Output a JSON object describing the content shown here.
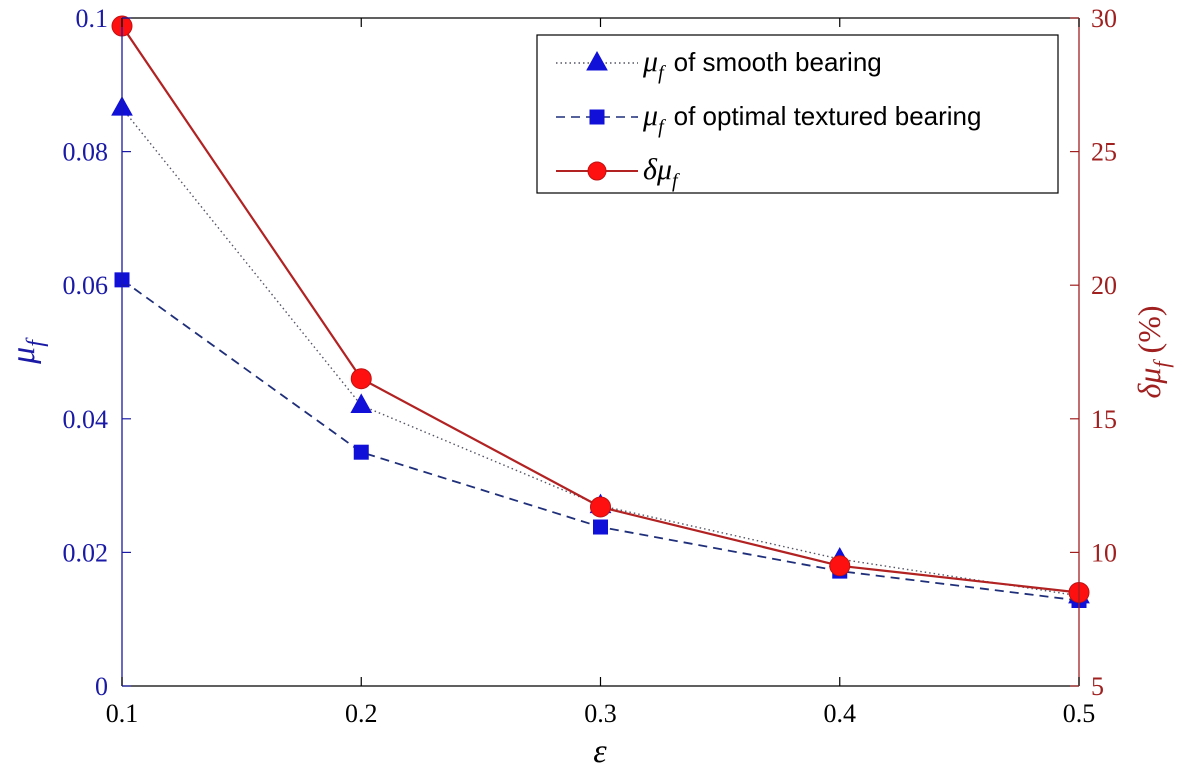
{
  "chart_data": {
    "type": "line",
    "xlabel": "ε",
    "ylabel_left": {
      "symbol": "μ",
      "sub": "f"
    },
    "ylabel_right": {
      "symbol": "δμ",
      "sub": "f",
      "suffix": " (%)"
    },
    "x": [
      0.1,
      0.2,
      0.3,
      0.4,
      0.5
    ],
    "x_ticks": [
      "0.1",
      "0.2",
      "0.3",
      "0.4",
      "0.5"
    ],
    "xlim": [
      0.1,
      0.5
    ],
    "ylim_left": [
      0,
      0.1
    ],
    "ylim_right": [
      5,
      30
    ],
    "left_ticks": [
      {
        "v": 0,
        "label": "0"
      },
      {
        "v": 0.02,
        "label": "0.02"
      },
      {
        "v": 0.04,
        "label": "0.04"
      },
      {
        "v": 0.06,
        "label": "0.06"
      },
      {
        "v": 0.08,
        "label": "0.08"
      },
      {
        "v": 0.1,
        "label": "0.1"
      }
    ],
    "right_ticks": [
      {
        "v": 5,
        "label": "5"
      },
      {
        "v": 10,
        "label": "10"
      },
      {
        "v": 15,
        "label": "15"
      },
      {
        "v": 20,
        "label": "20"
      },
      {
        "v": 25,
        "label": "25"
      },
      {
        "v": 30,
        "label": "30"
      }
    ],
    "series": [
      {
        "key": "smooth",
        "name": "of smooth bearing",
        "legend_symbol": "μ",
        "legend_sub": "f",
        "axis": "left",
        "marker": "triangle",
        "line": "dotted",
        "values": [
          0.0865,
          0.042,
          0.027,
          0.019,
          0.0135
        ]
      },
      {
        "key": "textured",
        "name": "of optimal textured bearing",
        "legend_symbol": "μ",
        "legend_sub": "f",
        "axis": "left",
        "marker": "square",
        "line": "dashed",
        "values": [
          0.0608,
          0.035,
          0.0238,
          0.0172,
          0.0128
        ]
      },
      {
        "key": "delta",
        "name": "",
        "legend_symbol": "δμ",
        "legend_sub": "f",
        "axis": "right",
        "marker": "circle",
        "line": "solid",
        "values": [
          29.7,
          16.5,
          11.7,
          9.5,
          8.5
        ]
      }
    ],
    "legend_position": "top-right",
    "colors": {
      "left_axis": "#1a1aa6",
      "right_axis": "#a02020",
      "smooth_line": "#555566",
      "textured_line": "#1f2f7a",
      "delta_line": "#b22222",
      "marker_blue": "#1010d8",
      "marker_red": "#ff1010"
    }
  }
}
